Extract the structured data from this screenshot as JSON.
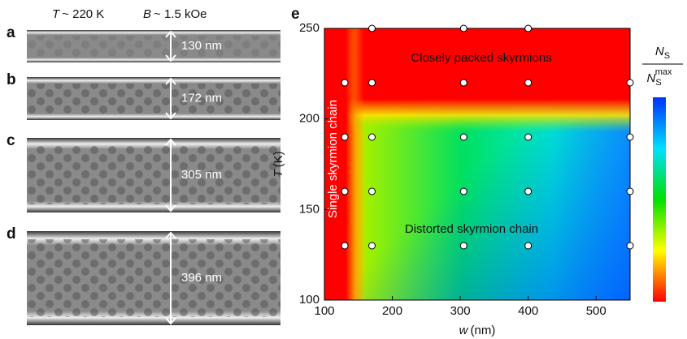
{
  "header": {
    "temperature": {
      "symbol": "T",
      "text": "~ 220 K"
    },
    "field": {
      "symbol": "B",
      "text": "~ 1.5 kOe"
    }
  },
  "panels": [
    {
      "label": "a",
      "width": "130 nm"
    },
    {
      "label": "b",
      "width": "172 nm"
    },
    {
      "label": "c",
      "width": "305 nm"
    },
    {
      "label": "d",
      "width": "396 nm"
    }
  ],
  "chart_data": {
    "type": "scatter",
    "label": "e",
    "x_label": {
      "symbol": "w",
      "unit": "(nm)"
    },
    "y_label": {
      "symbol": "T",
      "unit": "(K)"
    },
    "xlim": [
      100,
      550
    ],
    "ylim": [
      100,
      250
    ],
    "xticks": [
      100,
      200,
      300,
      400,
      500
    ],
    "yticks": [
      100,
      150,
      200,
      250
    ],
    "x": [
      170,
      305,
      400,
      130,
      170,
      305,
      400,
      550,
      130,
      170,
      305,
      400,
      550,
      130,
      170,
      305,
      400,
      550,
      130,
      170,
      305,
      400,
      550
    ],
    "y": [
      250,
      250,
      250,
      220,
      220,
      220,
      220,
      220,
      190,
      190,
      190,
      190,
      190,
      160,
      160,
      160,
      160,
      160,
      130,
      130,
      130,
      130,
      130
    ],
    "annotations": [
      "Closely packed skyrmions",
      "Distorted skyrmion chain",
      "Single skyrmion chain"
    ],
    "colorbar_label": {
      "symbol": "N",
      "subscript": "S",
      "superscript": "max"
    }
  }
}
